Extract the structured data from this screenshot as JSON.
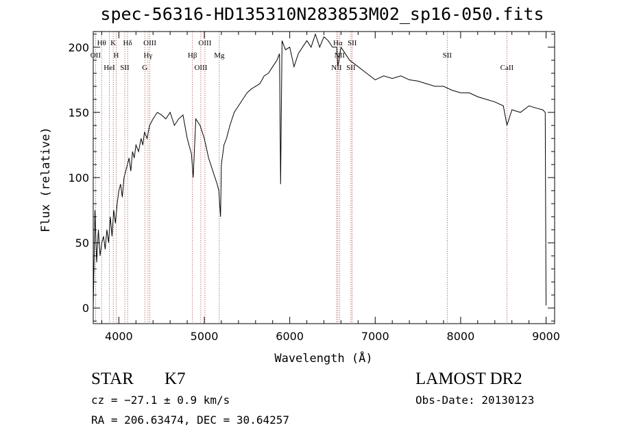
{
  "title": "spec-56316-HD135310N283853M02_sp16-050.fits",
  "chart_data": {
    "type": "line",
    "title": "spec-56316-HD135310N283853M02_sp16-050.fits",
    "xlabel": "Wavelength (Å)",
    "ylabel": "Flux (relative)",
    "xlim": [
      3700,
      9100
    ],
    "ylim": [
      -12,
      212
    ],
    "x_ticks": [
      4000,
      5000,
      6000,
      7000,
      8000,
      9000
    ],
    "y_ticks": [
      0,
      50,
      100,
      150,
      200
    ],
    "grid": false,
    "line_color": "#000000",
    "series": [
      {
        "x": [
          3700,
          3720,
          3740,
          3760,
          3780,
          3800,
          3820,
          3840,
          3860,
          3880,
          3900,
          3920,
          3940,
          3960,
          3980,
          4000,
          4020,
          4040,
          4060,
          4080,
          4100,
          4120,
          4140,
          4160,
          4180,
          4200,
          4230,
          4260,
          4280,
          4300,
          4330,
          4360,
          4400,
          4450,
          4500,
          4550,
          4600,
          4650,
          4700,
          4750,
          4800,
          4850,
          4870,
          4900,
          4950,
          5000,
          5050,
          5100,
          5150,
          5170,
          5190,
          5200,
          5230,
          5260,
          5300,
          5350,
          5400,
          5450,
          5500,
          5550,
          5600,
          5650,
          5700,
          5750,
          5800,
          5850,
          5880,
          5893,
          5910,
          5950,
          6000,
          6050,
          6100,
          6150,
          6200,
          6250,
          6300,
          6350,
          6400,
          6450,
          6500,
          6550,
          6563,
          6600,
          6650,
          6700,
          6800,
          6900,
          7000,
          7100,
          7200,
          7300,
          7400,
          7500,
          7600,
          7700,
          7800,
          7900,
          8000,
          8100,
          8200,
          8300,
          8400,
          8500,
          8542,
          8600,
          8700,
          8800,
          8900,
          8960,
          8990,
          9000
        ],
        "y": [
          0,
          75,
          35,
          60,
          40,
          50,
          55,
          45,
          60,
          50,
          70,
          55,
          75,
          65,
          80,
          90,
          95,
          85,
          100,
          105,
          110,
          115,
          105,
          120,
          115,
          125,
          120,
          130,
          125,
          135,
          130,
          140,
          145,
          150,
          148,
          145,
          150,
          140,
          145,
          148,
          130,
          118,
          100,
          145,
          140,
          130,
          115,
          105,
          95,
          90,
          70,
          110,
          125,
          130,
          140,
          150,
          155,
          160,
          165,
          168,
          170,
          172,
          178,
          180,
          185,
          190,
          195,
          95,
          205,
          198,
          200,
          185,
          195,
          200,
          205,
          200,
          210,
          200,
          208,
          205,
          200,
          200,
          185,
          200,
          195,
          190,
          185,
          180,
          175,
          178,
          176,
          178,
          175,
          174,
          172,
          170,
          170,
          167,
          165,
          165,
          162,
          160,
          158,
          155,
          140,
          152,
          150,
          155,
          153,
          152,
          150,
          2
        ]
      }
    ],
    "spectral_lines": [
      {
        "label": "Hθ",
        "wavelength": 3798
      },
      {
        "label": "OII",
        "wavelength": 3727
      },
      {
        "label": "HeI",
        "wavelength": 3889
      },
      {
        "label": "K",
        "wavelength": 3934
      },
      {
        "label": "H",
        "wavelength": 3969
      },
      {
        "label": "SII",
        "wavelength": 4069
      },
      {
        "label": "Hδ",
        "wavelength": 4102
      },
      {
        "label": "Hγ",
        "wavelength": 4341
      },
      {
        "label": "G",
        "wavelength": 4304
      },
      {
        "label": "OIII",
        "wavelength": 4363
      },
      {
        "label": "Hβ",
        "wavelength": 4861
      },
      {
        "label": "OIII",
        "wavelength": 4959
      },
      {
        "label": "OIII",
        "wavelength": 5007
      },
      {
        "label": "Mg",
        "wavelength": 5175
      },
      {
        "label": "NII",
        "wavelength": 6548
      },
      {
        "label": "Hα",
        "wavelength": 6563
      },
      {
        "label": "NII",
        "wavelength": 6583
      },
      {
        "label": "SII",
        "wavelength": 6716
      },
      {
        "label": "SII",
        "wavelength": 6731
      },
      {
        "label": "SII",
        "wavelength": 7843
      },
      {
        "label": "CaII",
        "wavelength": 8542
      }
    ]
  },
  "footer": {
    "object_class": "STAR",
    "subclass": "K7",
    "survey": "LAMOST DR2",
    "redshift": "cz = −27.1 ± 0.9 km/s",
    "obs_date": "Obs-Date: 20130123",
    "coords": "RA = 206.63474, DEC =  30.64257"
  }
}
